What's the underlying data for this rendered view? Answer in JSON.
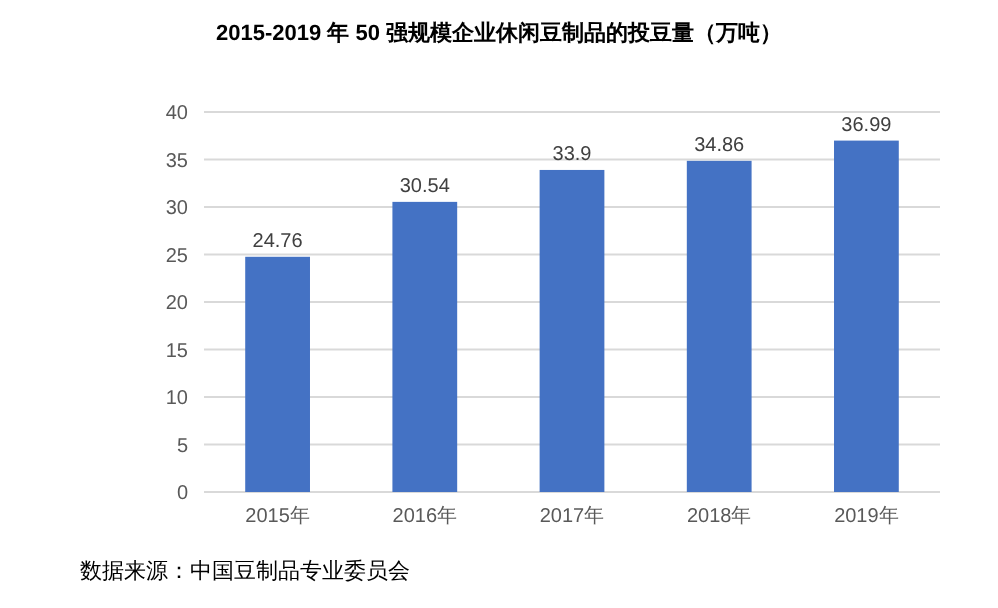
{
  "chart_data": {
    "type": "bar",
    "title": "2015-2019 年 50 强规模企业休闲豆制品的投豆量（万吨）",
    "categories": [
      "2015年",
      "2016年",
      "2017年",
      "2018年",
      "2019年"
    ],
    "values": [
      24.76,
      30.54,
      33.9,
      34.86,
      36.99
    ],
    "color": "#4472c4",
    "ylim": [
      0,
      40
    ],
    "yticks": [
      0,
      5,
      10,
      15,
      20,
      25,
      30,
      35,
      40
    ],
    "grid": "y",
    "data_labels": true,
    "annotations": [
      "数据来源：中国豆制品专业委员会"
    ]
  }
}
